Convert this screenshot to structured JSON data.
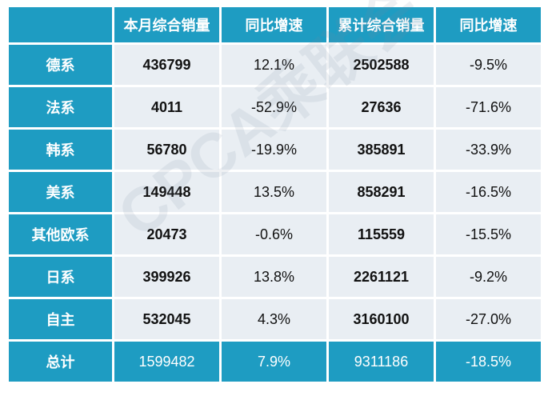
{
  "table": {
    "header": [
      "本月综合销量",
      "同比增速",
      "累计综合销量",
      "同比增速"
    ],
    "rows": [
      [
        "德系",
        "436799",
        "12.1%",
        "2502588",
        "-9.5%"
      ],
      [
        "法系",
        "4011",
        "-52.9%",
        "27636",
        "-71.6%"
      ],
      [
        "韩系",
        "56780",
        "-19.9%",
        "385891",
        "-33.9%"
      ],
      [
        "美系",
        "149448",
        "13.5%",
        "858291",
        "-16.5%"
      ],
      [
        "其他欧系",
        "20473",
        "-0.6%",
        "115559",
        "-15.5%"
      ],
      [
        "日系",
        "399926",
        "13.8%",
        "2261121",
        "-9.2%"
      ],
      [
        "自主",
        "532045",
        "4.3%",
        "3160100",
        "-27.0%"
      ]
    ],
    "total": [
      "总计",
      "1599482",
      "7.9%",
      "9311186",
      "-18.5%"
    ]
  },
  "watermark": "CPCA乘联会"
}
